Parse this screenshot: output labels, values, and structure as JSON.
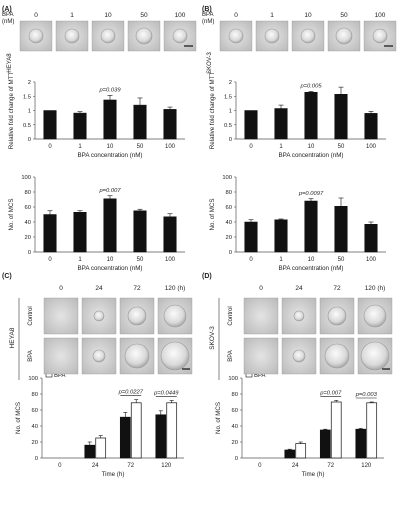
{
  "panels": {
    "A": {
      "label": "(A)",
      "cell_line": "HEYA8",
      "strip_header": [
        "BPA",
        "(nM)"
      ],
      "concentrations": [
        "0",
        "1",
        "10",
        "50",
        "100"
      ]
    },
    "B": {
      "label": "(B)",
      "cell_line": "SKOV-3",
      "strip_header": [
        "BPA",
        "(nM)"
      ],
      "concentrations": [
        "0",
        "1",
        "10",
        "50",
        "100"
      ]
    },
    "C": {
      "label": "(C)",
      "cell_line": "HEYA8",
      "rows": [
        "Control",
        "BPA"
      ],
      "times": [
        "0",
        "24",
        "72",
        "120 (h)"
      ]
    },
    "D": {
      "label": "(D)",
      "cell_line": "SKOV-3",
      "rows": [
        "Control",
        "BPA"
      ],
      "times": [
        "0",
        "24",
        "72",
        "120 (h)"
      ]
    }
  },
  "chart_data": [
    {
      "id": "A-mtt",
      "type": "bar",
      "categories": [
        "0",
        "1",
        "10",
        "50",
        "100"
      ],
      "values": [
        1.0,
        0.91,
        1.37,
        1.19,
        1.04
      ],
      "errors": [
        0.0,
        0.05,
        0.16,
        0.25,
        0.08
      ],
      "xlabel": "BPA concentration (nM)",
      "ylabel": "Relative fold change of MTT",
      "ylim": [
        0,
        2
      ],
      "yticks": [
        "0",
        "0.5",
        "1",
        "1.5",
        "2"
      ],
      "annotation": {
        "text": "p=0.039",
        "category": "10"
      }
    },
    {
      "id": "A-mcs",
      "type": "bar",
      "categories": [
        "0",
        "1",
        "10",
        "50",
        "100"
      ],
      "values": [
        50,
        53,
        71,
        55,
        47
      ],
      "errors": [
        5,
        2,
        4,
        2,
        4
      ],
      "xlabel": "BPA concentration (nM)",
      "ylabel": "No. of MCS",
      "ylim": [
        0,
        100
      ],
      "yticks": [
        "0",
        "20",
        "40",
        "60",
        "80",
        "100"
      ],
      "annotation": {
        "text": "p=0.007",
        "category": "10"
      }
    },
    {
      "id": "B-mtt",
      "type": "bar",
      "categories": [
        "0",
        "1",
        "10",
        "50",
        "100"
      ],
      "values": [
        1.0,
        1.07,
        1.64,
        1.57,
        0.9
      ],
      "errors": [
        0.0,
        0.12,
        0.03,
        0.25,
        0.07
      ],
      "xlabel": "BPA concentration (nM)",
      "ylabel": "Relative fold change of MTT",
      "ylim": [
        0,
        2
      ],
      "yticks": [
        "0",
        "0.5",
        "1",
        "1.5",
        "2"
      ],
      "annotation": {
        "text": "p=0.005",
        "category": "10"
      }
    },
    {
      "id": "B-mcs",
      "type": "bar",
      "categories": [
        "0",
        "1",
        "10",
        "50",
        "100"
      ],
      "values": [
        40,
        43,
        68,
        61,
        37
      ],
      "errors": [
        3,
        1,
        3,
        11,
        3
      ],
      "xlabel": "BPA concentration (nM)",
      "ylabel": "No. of MCS",
      "ylim": [
        0,
        100
      ],
      "yticks": [
        "0",
        "20",
        "40",
        "60",
        "80",
        "100"
      ],
      "annotation": {
        "text": "p=0.0097",
        "category": "10"
      }
    },
    {
      "id": "C-time",
      "type": "bar",
      "categories": [
        "0",
        "24",
        "72",
        "120"
      ],
      "series": [
        {
          "name": "Control",
          "color": "#111111",
          "values": [
            0,
            16,
            51,
            54
          ],
          "errors": [
            0,
            4,
            6,
            5
          ]
        },
        {
          "name": "BPA",
          "color": "#ffffff",
          "values": [
            0,
            25,
            69,
            69
          ],
          "errors": [
            0,
            3,
            4,
            3
          ]
        }
      ],
      "xlabel": "Time (h)",
      "ylabel": "No. of MCS",
      "ylim": [
        0,
        100
      ],
      "yticks": [
        "0",
        "20",
        "40",
        "60",
        "80",
        "100"
      ],
      "legend": "top-left",
      "annotations": [
        {
          "text": "p=0.0227",
          "category": "72"
        },
        {
          "text": "p=0.0449",
          "category": "120"
        }
      ]
    },
    {
      "id": "D-time",
      "type": "bar",
      "categories": [
        "0",
        "24",
        "72",
        "120"
      ],
      "series": [
        {
          "name": "Control",
          "color": "#111111",
          "values": [
            0,
            10,
            35,
            36
          ],
          "errors": [
            0,
            1,
            1,
            1
          ]
        },
        {
          "name": "BPA",
          "color": "#ffffff",
          "values": [
            0,
            18,
            70,
            69
          ],
          "errors": [
            0,
            2,
            2,
            1
          ]
        }
      ],
      "xlabel": "Time (h)",
      "ylabel": "No. of MCS",
      "ylim": [
        0,
        100
      ],
      "yticks": [
        "0",
        "20",
        "40",
        "60",
        "80",
        "100"
      ],
      "legend": "top-left",
      "annotations": [
        {
          "text": "p=0.007",
          "category": "72"
        },
        {
          "text": "p=0.003",
          "category": "120"
        }
      ]
    }
  ]
}
